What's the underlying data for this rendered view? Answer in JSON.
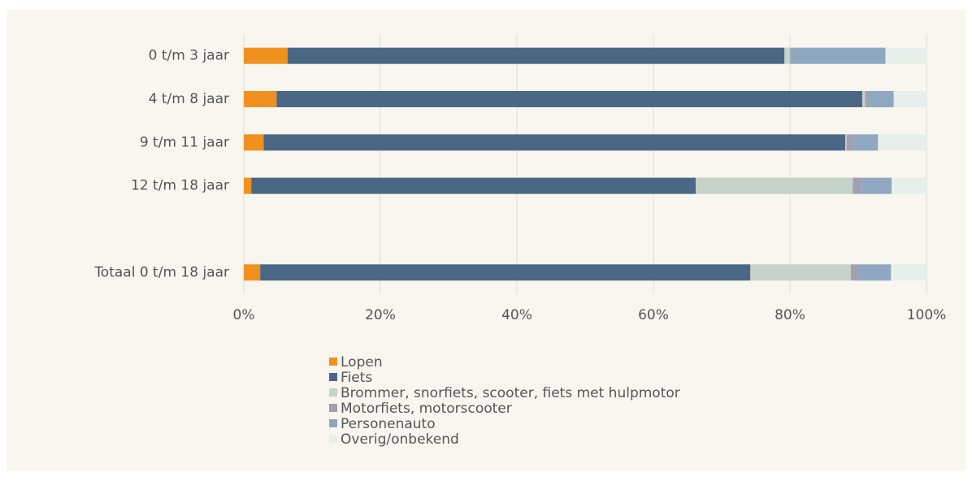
{
  "chart_data": {
    "type": "stacked_barh",
    "categories": [
      "0 t/m 3 jaar",
      "4 t/m 8 jaar",
      "9 t/m 11 jaar",
      "12 t/m 18 jaar",
      null,
      "Totaal 0 t/m 18 jaar"
    ],
    "series": [
      {
        "name": "Lopen",
        "color": "#f0901e",
        "values": [
          6.4,
          4.8,
          2.9,
          1.1,
          null,
          2.4
        ]
      },
      {
        "name": "Fiets",
        "color": "#4a6885",
        "values": [
          72.8,
          85.8,
          85.2,
          65.1,
          null,
          71.8
        ]
      },
      {
        "name": "Brommer, snorfiets, scooter, fiets met hulpmotor",
        "color": "#c5d3c8",
        "values": [
          0.8,
          0.4,
          0.2,
          23.0,
          null,
          14.7
        ]
      },
      {
        "name": "Motorfiets, motorscooter",
        "color": "#a39fb0",
        "values": [
          0.1,
          0.3,
          1.0,
          1.2,
          null,
          1.0
        ]
      },
      {
        "name": "Personenauto",
        "color": "#8fa7c0",
        "values": [
          13.9,
          3.9,
          3.6,
          4.5,
          null,
          4.9
        ]
      },
      {
        "name": "Overig/onbekend",
        "color": "#e6efea",
        "values": [
          6.1,
          4.8,
          7.1,
          5.1,
          null,
          5.2
        ]
      }
    ],
    "xlim": [
      0,
      100
    ],
    "xticks": [
      {
        "value": 0,
        "label": "0%"
      },
      {
        "value": 20,
        "label": "20%"
      },
      {
        "value": 40,
        "label": "40%"
      },
      {
        "value": 60,
        "label": "60%"
      },
      {
        "value": 80,
        "label": "80%"
      },
      {
        "value": 100,
        "label": "100%"
      }
    ],
    "grid": true
  }
}
